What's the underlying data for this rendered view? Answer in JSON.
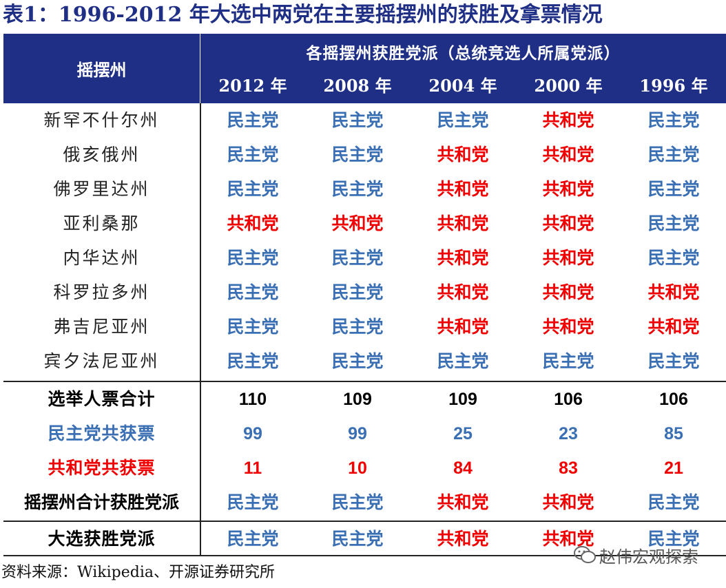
{
  "title": "表1：1996-2012 年大选中两党在主要摇摆州的获胜及拿票情况",
  "header": {
    "state_col": "摇摆州",
    "group_label": "各摇摆州获胜党派（总统竞选人所属党派）",
    "years": [
      "2012 年",
      "2008 年",
      "2004 年",
      "2000 年",
      "1996 年"
    ]
  },
  "colors": {
    "header_bg": "#1f2f85",
    "democrat": "#3a6fb4",
    "republican": "#f00000"
  },
  "states": [
    {
      "name": "新罕不什尔州",
      "results": [
        "民主党",
        "民主党",
        "民主党",
        "共和党",
        "民主党"
      ]
    },
    {
      "name": "俄亥俄州",
      "results": [
        "民主党",
        "民主党",
        "共和党",
        "共和党",
        "民主党"
      ]
    },
    {
      "name": "佛罗里达州",
      "results": [
        "民主党",
        "民主党",
        "共和党",
        "共和党",
        "民主党"
      ]
    },
    {
      "name": "亚利桑那",
      "results": [
        "共和党",
        "共和党",
        "共和党",
        "共和党",
        "民主党"
      ]
    },
    {
      "name": "内华达州",
      "results": [
        "民主党",
        "民主党",
        "共和党",
        "共和党",
        "民主党"
      ]
    },
    {
      "name": "科罗拉多州",
      "results": [
        "民主党",
        "民主党",
        "共和党",
        "共和党",
        "共和党"
      ]
    },
    {
      "name": "弗吉尼亚州",
      "results": [
        "民主党",
        "民主党",
        "共和党",
        "共和党",
        "共和党"
      ]
    },
    {
      "name": "宾夕法尼亚州",
      "results": [
        "民主党",
        "民主党",
        "民主党",
        "民主党",
        "民主党"
      ]
    }
  ],
  "summary": {
    "electoral_total": {
      "label": "选举人票合计",
      "values": [
        "110",
        "109",
        "109",
        "106",
        "106"
      ]
    },
    "dem_votes": {
      "label": "民主党共获票",
      "values": [
        "99",
        "99",
        "25",
        "23",
        "85"
      ]
    },
    "rep_votes": {
      "label": "共和党共获票",
      "values": [
        "11",
        "10",
        "84",
        "83",
        "21"
      ]
    },
    "swing_winner": {
      "label": "摇摆州合计获胜党派",
      "values": [
        "民主党",
        "民主党",
        "共和党",
        "共和党",
        "民主党"
      ]
    },
    "election_winner": {
      "label": "大选获胜党派",
      "values": [
        "民主党",
        "民主党",
        "共和党",
        "共和党",
        "民主党"
      ]
    }
  },
  "source": "资料来源：Wikipedia、开源证券研究所",
  "watermark": "赵伟宏观探索"
}
